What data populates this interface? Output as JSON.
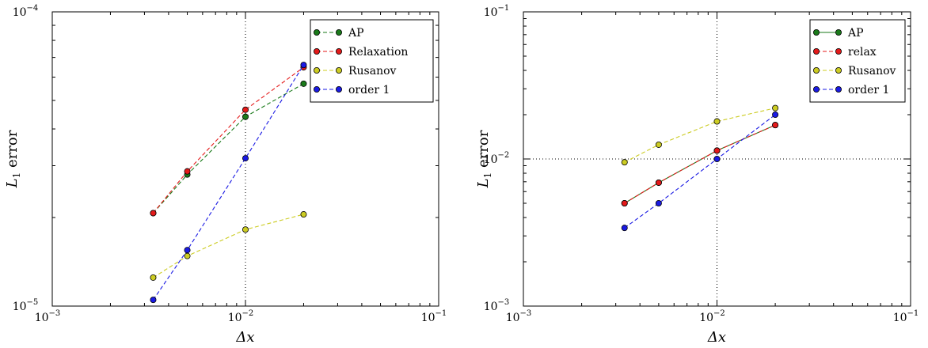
{
  "chart_data": [
    {
      "type": "line",
      "title": "",
      "xlabel": "Δx",
      "ylabel": "L1 error",
      "x_scale": "log",
      "y_scale": "log",
      "xlim": [
        0.001,
        0.1
      ],
      "ylim": [
        1e-05,
        0.0001
      ],
      "x_ticks": [
        {
          "value": 0.001,
          "base": "10",
          "exp": "−3"
        },
        {
          "value": 0.01,
          "base": "10",
          "exp": "−2"
        },
        {
          "value": 0.1,
          "base": "10",
          "exp": "−1"
        }
      ],
      "y_ticks": [
        {
          "value": 1e-05,
          "base": "10",
          "exp": "−5"
        },
        {
          "value": 0.0001,
          "base": "10",
          "exp": "−4"
        }
      ],
      "ref_lines": {
        "x": [
          0.01
        ],
        "y": []
      },
      "legend_position": "top-right",
      "series": [
        {
          "name": "AP",
          "color": "#1a7a1a",
          "dash": "dashed",
          "x": [
            0.00333,
            0.005,
            0.01,
            0.02
          ],
          "y": [
            2.07e-05,
            2.8e-05,
            4.4e-05,
            5.7e-05
          ]
        },
        {
          "name": "Relaxation",
          "color": "#e41a1a",
          "dash": "dashed",
          "x": [
            0.00333,
            0.005,
            0.01,
            0.02
          ],
          "y": [
            2.07e-05,
            2.87e-05,
            4.65e-05,
            6.48e-05
          ]
        },
        {
          "name": "Rusanov",
          "color": "#cccc22",
          "dash": "dashed",
          "x": [
            0.00333,
            0.005,
            0.01,
            0.02
          ],
          "y": [
            1.25e-05,
            1.48e-05,
            1.82e-05,
            2.05e-05
          ]
        },
        {
          "name": "order 1",
          "color": "#1a1ae4",
          "dash": "dashed",
          "x": [
            0.00333,
            0.005,
            0.01,
            0.02
          ],
          "y": [
            1.05e-05,
            1.55e-05,
            3.18e-05,
            6.6e-05
          ]
        }
      ]
    },
    {
      "type": "line",
      "title": "",
      "xlabel": "Δx",
      "ylabel": "L1 error",
      "x_scale": "log",
      "y_scale": "log",
      "xlim": [
        0.001,
        0.1
      ],
      "ylim": [
        0.001,
        0.1
      ],
      "x_ticks": [
        {
          "value": 0.001,
          "base": "10",
          "exp": "−3"
        },
        {
          "value": 0.01,
          "base": "10",
          "exp": "−2"
        },
        {
          "value": 0.1,
          "base": "10",
          "exp": "−1"
        }
      ],
      "y_ticks": [
        {
          "value": 0.001,
          "base": "10",
          "exp": "−3"
        },
        {
          "value": 0.01,
          "base": "10",
          "exp": "−2"
        },
        {
          "value": 0.1,
          "base": "10",
          "exp": "−1"
        }
      ],
      "ref_lines": {
        "x": [
          0.01
        ],
        "y": [
          0.01
        ]
      },
      "legend_position": "top-right",
      "series": [
        {
          "name": "AP",
          "color": "#1a7a1a",
          "dash": "solid",
          "x": [
            0.00333,
            0.005,
            0.01,
            0.02
          ],
          "y": [
            0.005,
            0.0069,
            0.0114,
            0.017
          ]
        },
        {
          "name": "relax",
          "color": "#e41a1a",
          "dash": "dashed",
          "x": [
            0.00333,
            0.005,
            0.01,
            0.02
          ],
          "y": [
            0.005,
            0.0069,
            0.0114,
            0.017
          ]
        },
        {
          "name": "Rusanov",
          "color": "#cccc22",
          "dash": "dashed",
          "x": [
            0.00333,
            0.005,
            0.01,
            0.02
          ],
          "y": [
            0.0095,
            0.0125,
            0.018,
            0.0222
          ]
        },
        {
          "name": "order 1",
          "color": "#1a1ae4",
          "dash": "dashed",
          "x": [
            0.00333,
            0.005,
            0.01,
            0.02
          ],
          "y": [
            0.0034,
            0.005,
            0.01,
            0.02
          ]
        }
      ]
    }
  ]
}
